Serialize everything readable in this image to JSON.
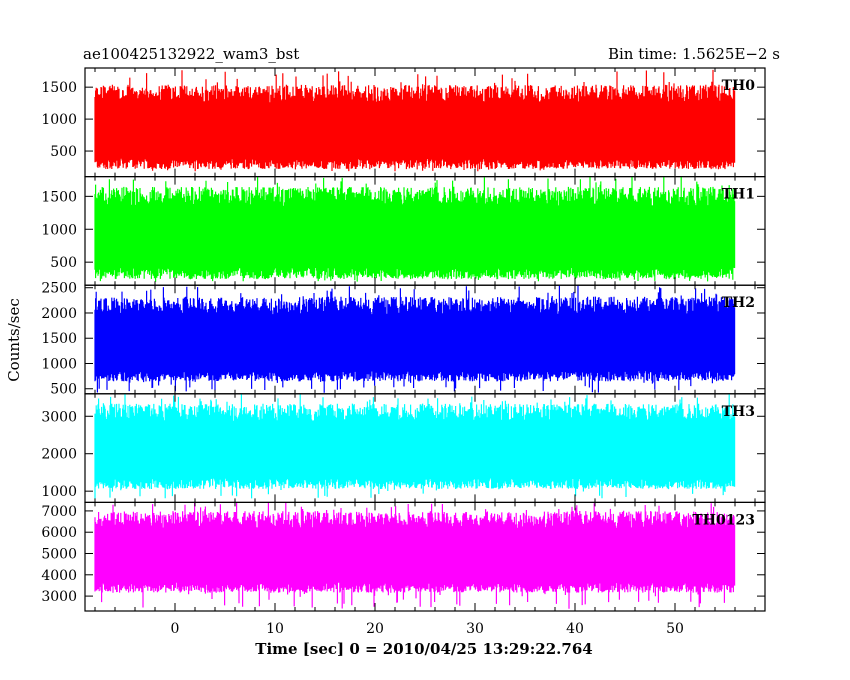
{
  "header": {
    "title_left": "ae100425132922_wam3_bst",
    "title_right": "Bin time: 1.5625E−2 s"
  },
  "xlabel": "Time [sec] 0 = 2010/04/25 13:29:22.764",
  "ylabel": "Counts/sec",
  "chart_data": [
    {
      "type": "line",
      "series_label": "TH0",
      "color": "#ff0000",
      "xlim": [
        -9,
        59
      ],
      "xticks": [
        0,
        10,
        20,
        30,
        40,
        50
      ],
      "ylim": [
        100,
        1800
      ],
      "yticks": [
        500,
        1000,
        1500
      ],
      "data_xrange": [
        -8,
        56
      ],
      "level": {
        "typical_min": 300,
        "typical_max": 1400,
        "peak_min": 180,
        "peak_max": 1780
      }
    },
    {
      "type": "line",
      "series_label": "TH1",
      "color": "#00ff00",
      "xlim": [
        -9,
        59
      ],
      "xticks": [
        0,
        10,
        20,
        30,
        40,
        50
      ],
      "ylim": [
        150,
        1800
      ],
      "yticks": [
        500,
        1000,
        1500
      ],
      "data_xrange": [
        -8,
        56
      ],
      "level": {
        "typical_min": 330,
        "typical_max": 1500,
        "peak_min": 200,
        "peak_max": 1800
      }
    },
    {
      "type": "line",
      "series_label": "TH2",
      "color": "#0000ff",
      "xlim": [
        -9,
        59
      ],
      "xticks": [
        0,
        10,
        20,
        30,
        40,
        50
      ],
      "ylim": [
        400,
        2550
      ],
      "yticks": [
        500,
        1000,
        1500,
        2000,
        2500
      ],
      "data_xrange": [
        -8,
        56
      ],
      "level": {
        "typical_min": 750,
        "typical_max": 2150,
        "peak_min": 420,
        "peak_max": 2550
      }
    },
    {
      "type": "line",
      "series_label": "TH3",
      "color": "#00ffff",
      "xlim": [
        -9,
        59
      ],
      "xticks": [
        0,
        10,
        20,
        30,
        40,
        50
      ],
      "ylim": [
        700,
        3600
      ],
      "yticks": [
        1000,
        2000,
        3000
      ],
      "data_xrange": [
        -8,
        56
      ],
      "level": {
        "typical_min": 1200,
        "typical_max": 3100,
        "peak_min": 800,
        "peak_max": 3600
      }
    },
    {
      "type": "line",
      "series_label": "TH0123",
      "color": "#ff00ff",
      "xlim": [
        -9,
        59
      ],
      "xticks": [
        0,
        10,
        20,
        30,
        40,
        50
      ],
      "ylim": [
        2300,
        7400
      ],
      "yticks": [
        3000,
        4000,
        5000,
        6000,
        7000
      ],
      "data_xrange": [
        -8,
        56
      ],
      "level": {
        "typical_min": 3400,
        "typical_max": 6600,
        "peak_min": 2400,
        "peak_max": 7400
      }
    }
  ]
}
